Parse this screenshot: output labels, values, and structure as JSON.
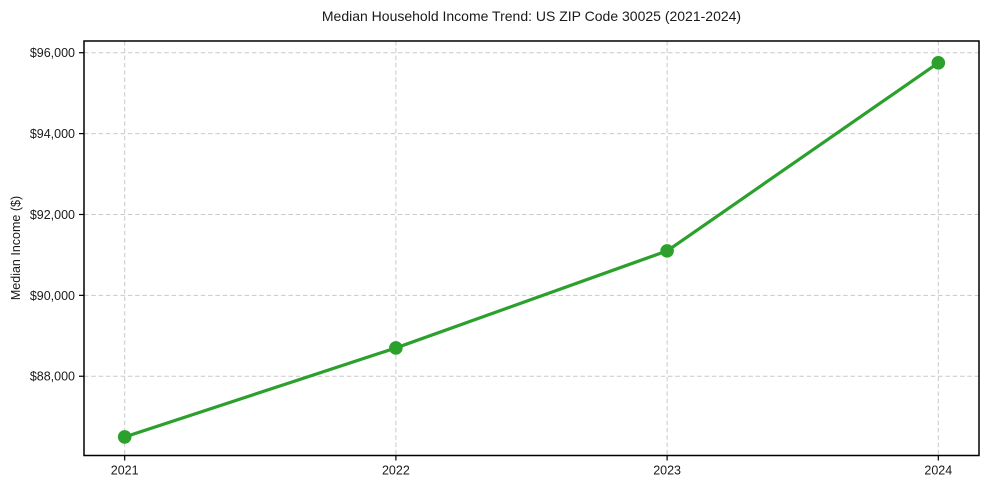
{
  "chart_data": {
    "type": "line",
    "title": "Median Household Income Trend: US ZIP Code 30025 (2021-2024)",
    "xlabel": "",
    "ylabel": "Median Income ($)",
    "x": [
      2021,
      2022,
      2023,
      2024
    ],
    "series": [
      {
        "name": "Median Household Income",
        "values": [
          86500,
          88700,
          91100,
          95750
        ],
        "color": "#2ca02c",
        "marker": "circle"
      }
    ],
    "xticks": {
      "values": [
        2021,
        2022,
        2023,
        2024
      ],
      "labels": [
        "2021",
        "2022",
        "2023",
        "2024"
      ]
    },
    "yticks": {
      "values": [
        88000,
        90000,
        92000,
        94000,
        96000
      ],
      "labels": [
        "$88,000",
        "$90,000",
        "$92,000",
        "$94,000",
        "$96,000"
      ]
    },
    "xlim": [
      2020.85,
      2024.15
    ],
    "ylim": [
      86040,
      96290
    ],
    "grid": {
      "on": true,
      "linestyle": "dashed",
      "color": "#c9c9c9"
    },
    "legend_position": "none",
    "colors": {
      "line": "#2ca02c",
      "marker_fill": "#2ca02c",
      "text": "#1a1a1a",
      "spine": "#000000",
      "background": "#ffffff"
    }
  }
}
